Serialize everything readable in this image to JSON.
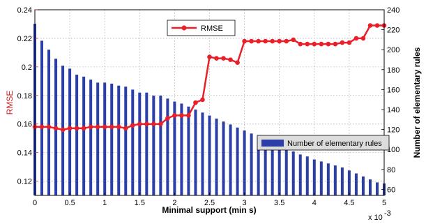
{
  "colors": {
    "rmse_line": "#e8202a",
    "rules_bar": "#2b3fa6",
    "left_axis": "#cc2222",
    "grid": "#b0b0b0",
    "legend_bg_rules": "#dcdcdc"
  },
  "chart_data": {
    "type": "bar+line",
    "xlabel": "Minimal support (min s)",
    "x_multiplier_label": "x 10",
    "x_multiplier_exponent": "-3",
    "xlim": [
      0,
      5
    ],
    "x_ticks": [
      "0",
      "0.5",
      "1",
      "1.5",
      "2",
      "2.5",
      "3",
      "3.5",
      "4",
      "4.5",
      "5"
    ],
    "y_left": {
      "label": "RMSE",
      "lim": [
        0.11,
        0.24
      ],
      "ticks": [
        "0.12",
        "0.14",
        "0.16",
        "0.18",
        "0.2",
        "0.22",
        "0.24"
      ]
    },
    "y_right": {
      "label": "Number of elementary rules",
      "lim": [
        54,
        240
      ],
      "ticks": [
        "60",
        "80",
        "100",
        "120",
        "140",
        "160",
        "180",
        "200",
        "220",
        "240"
      ]
    },
    "grid": true,
    "legends": [
      {
        "name": "RMSE",
        "placement": "top-center"
      },
      {
        "name": "Number of elementary rules",
        "placement": "bottom-right"
      }
    ],
    "series": [
      {
        "name": "RMSE",
        "axis": "left",
        "style": "line-with-markers",
        "x": [
          0,
          0.1,
          0.2,
          0.3,
          0.4,
          0.5,
          0.6,
          0.7,
          0.8,
          0.9,
          1.0,
          1.1,
          1.2,
          1.3,
          1.4,
          1.5,
          1.6,
          1.7,
          1.8,
          1.9,
          2.0,
          2.1,
          2.2,
          2.3,
          2.4,
          2.5,
          2.6,
          2.7,
          2.8,
          2.9,
          3.0,
          3.1,
          3.2,
          3.3,
          3.4,
          3.5,
          3.6,
          3.7,
          3.8,
          3.9,
          4.0,
          4.1,
          4.2,
          4.3,
          4.4,
          4.5,
          4.6,
          4.7,
          4.8,
          4.9,
          5.0
        ],
        "values": [
          0.158,
          0.158,
          0.158,
          0.157,
          0.156,
          0.157,
          0.157,
          0.157,
          0.158,
          0.158,
          0.158,
          0.158,
          0.158,
          0.157,
          0.159,
          0.16,
          0.16,
          0.16,
          0.16,
          0.164,
          0.166,
          0.166,
          0.166,
          0.175,
          0.177,
          0.207,
          0.206,
          0.206,
          0.205,
          0.203,
          0.218,
          0.218,
          0.218,
          0.218,
          0.218,
          0.218,
          0.218,
          0.219,
          0.216,
          0.216,
          0.216,
          0.216,
          0.216,
          0.216,
          0.217,
          0.217,
          0.22,
          0.22,
          0.229,
          0.229,
          0.229
        ]
      },
      {
        "name": "Number of elementary rules",
        "axis": "right",
        "style": "bar",
        "x": [
          0,
          0.1,
          0.2,
          0.3,
          0.4,
          0.5,
          0.6,
          0.7,
          0.8,
          0.9,
          1.0,
          1.1,
          1.2,
          1.3,
          1.4,
          1.5,
          1.6,
          1.7,
          1.8,
          1.9,
          2.0,
          2.1,
          2.2,
          2.3,
          2.4,
          2.5,
          2.6,
          2.7,
          2.8,
          2.9,
          3.0,
          3.1,
          3.2,
          3.3,
          3.4,
          3.5,
          3.6,
          3.7,
          3.8,
          3.9,
          4.0,
          4.1,
          4.2,
          4.3,
          4.4,
          4.5,
          4.6,
          4.7,
          4.8,
          4.9,
          5.0
        ],
        "values": [
          226,
          209,
          200,
          191,
          184,
          181,
          175,
          173,
          170,
          167,
          167,
          166,
          164,
          163,
          160,
          157,
          157,
          154,
          154,
          151,
          148,
          146,
          143,
          140,
          137,
          134,
          131,
          128,
          125,
          122,
          119,
          116,
          113,
          110,
          107,
          104,
          101,
          98,
          95,
          93,
          90,
          88,
          86,
          84,
          82,
          79,
          76,
          73,
          70,
          67,
          66
        ]
      }
    ]
  }
}
